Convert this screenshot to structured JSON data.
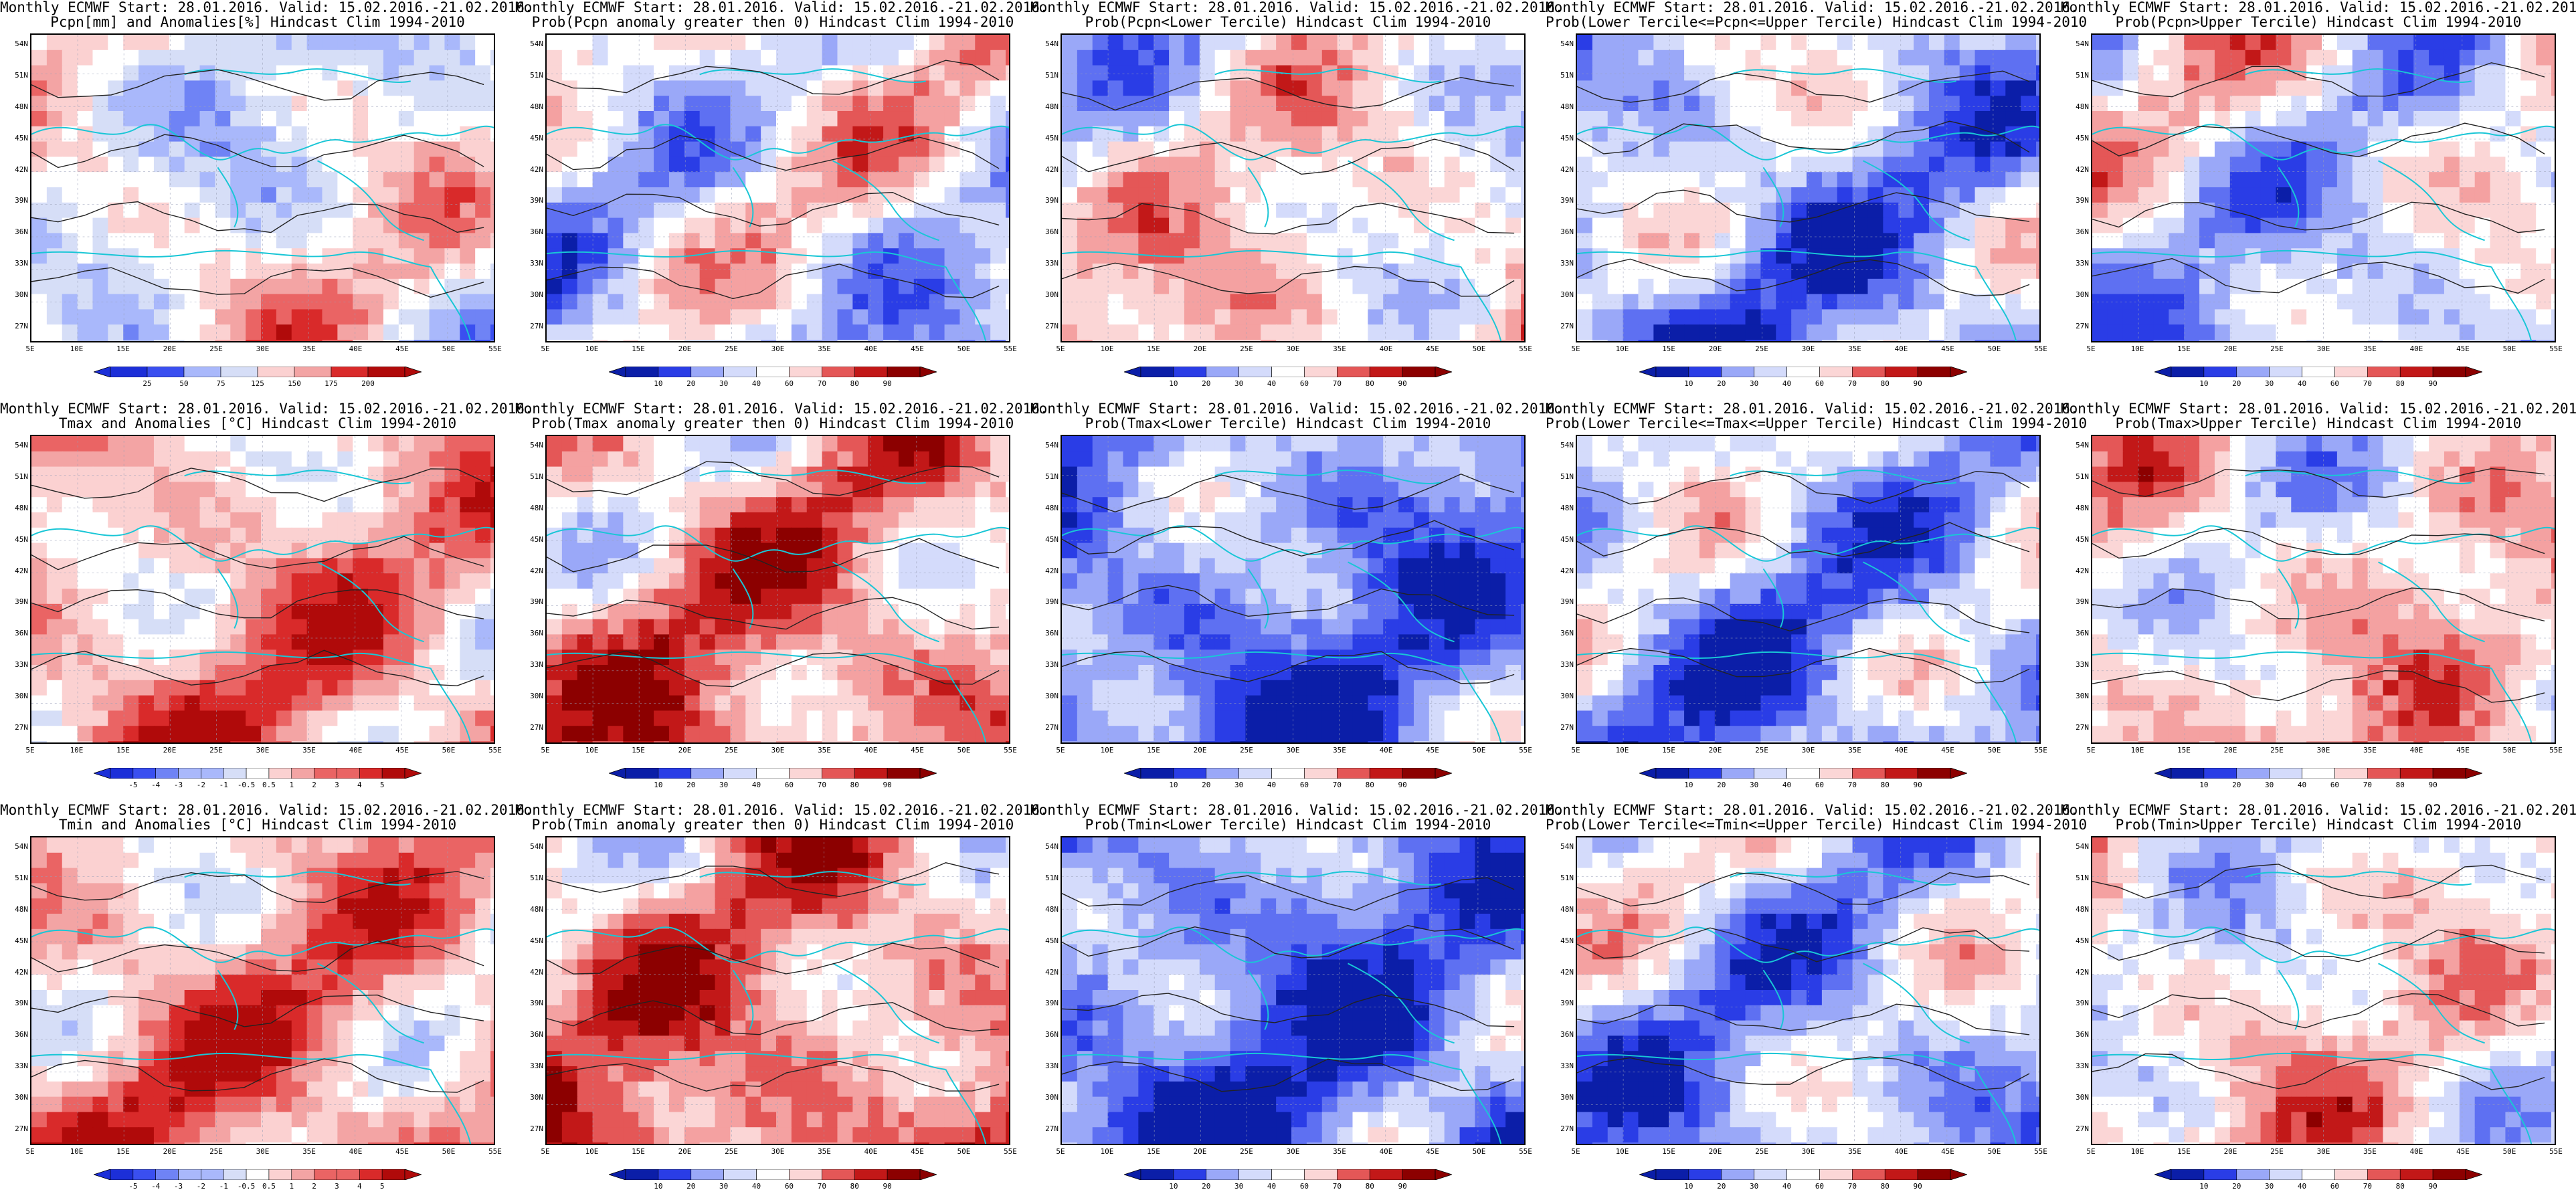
{
  "common_line1": "Monthly ECMWF Start: 28.01.2016. Valid: 15.02.2016.-21.02.2016.",
  "lat_labels": [
    "54N",
    "51N",
    "48N",
    "45N",
    "42N",
    "39N",
    "36N",
    "33N",
    "30N",
    "27N"
  ],
  "lon_labels": [
    "5E",
    "10E",
    "15E",
    "20E",
    "25E",
    "30E",
    "35E",
    "40E",
    "45E",
    "50E",
    "55E"
  ],
  "colormaps": {
    "diverging_blue_red": [
      "#1c2fd8",
      "#3a4ff0",
      "#6f83f5",
      "#a9b8fb",
      "#d6def7",
      "#ffffff",
      "#fbd1d1",
      "#f3a4a4",
      "#ea6464",
      "#d92a2a",
      "#b00a0a"
    ],
    "probability": [
      "#0b1ea8",
      "#2a3de6",
      "#5e70f2",
      "#9aa8f8",
      "#d4dbfb",
      "#ffffff",
      "#fbd6d6",
      "#f4a1a1",
      "#e45757",
      "#c21818",
      "#8c0000"
    ]
  },
  "colorbars": {
    "pcpn_anom": [
      "25",
      "50",
      "75",
      "125",
      "150",
      "175",
      "200"
    ],
    "temp_anom": [
      "-5",
      "-4",
      "-3",
      "-2",
      "-1",
      "-0.5",
      "0.5",
      "1",
      "2",
      "3",
      "4",
      "5"
    ],
    "prob": [
      "10",
      "20",
      "30",
      "40",
      "60",
      "70",
      "80",
      "90"
    ]
  },
  "panels": [
    {
      "title": "Pcpn[mm] and Anomalies[%] Hindcast Clim 1994-2010",
      "cbar": "pcpn_anom",
      "bias": 0.0,
      "seed": 11
    },
    {
      "title": "Prob(Pcpn anomaly greater then 0) Hindcast Clim 1994-2010",
      "cbar": "prob",
      "bias": -0.1,
      "seed": 12
    },
    {
      "title": "Prob(Pcpn<Lower Tercile) Hindcast Clim 1994-2010",
      "cbar": "prob",
      "bias": 0.1,
      "seed": 13
    },
    {
      "title": "Prob(Lower Tercile<=Pcpn<=Upper Tercile) Hindcast Clim 1994-2010",
      "cbar": "prob",
      "bias": -0.35,
      "seed": 14
    },
    {
      "title": "Prob(Pcpn>Upper Tercile) Hindcast Clim 1994-2010",
      "cbar": "prob",
      "bias": -0.15,
      "seed": 15
    },
    {
      "title": "Tmax and Anomalies [°C] Hindcast Clim 1994-2010",
      "cbar": "temp_anom",
      "bias": 0.35,
      "seed": 21
    },
    {
      "title": "Prob(Tmax anomaly greater then 0) Hindcast Clim 1994-2010",
      "cbar": "prob",
      "bias": 0.4,
      "seed": 22
    },
    {
      "title": "Prob(Tmax<Lower Tercile) Hindcast Clim 1994-2010",
      "cbar": "prob",
      "bias": -0.55,
      "seed": 23
    },
    {
      "title": "Prob(Lower Tercile<=Tmax<=Upper Tercile) Hindcast Clim 1994-2010",
      "cbar": "prob",
      "bias": -0.35,
      "seed": 24
    },
    {
      "title": "Prob(Tmax>Upper Tercile) Hindcast Clim 1994-2010",
      "cbar": "prob",
      "bias": 0.15,
      "seed": 25
    },
    {
      "title": "Tmin and Anomalies [°C] Hindcast Clim 1994-2010",
      "cbar": "temp_anom",
      "bias": 0.4,
      "seed": 31
    },
    {
      "title": "Prob(Tmin anomaly greater then 0) Hindcast Clim 1994-2010",
      "cbar": "prob",
      "bias": 0.45,
      "seed": 32
    },
    {
      "title": "Prob(Tmin<Lower Tercile) Hindcast Clim 1994-2010",
      "cbar": "prob",
      "bias": -0.6,
      "seed": 33
    },
    {
      "title": "Prob(Lower Tercile<=Tmin<=Upper Tercile) Hindcast Clim 1994-2010",
      "cbar": "prob",
      "bias": -0.3,
      "seed": 34
    },
    {
      "title": "Prob(Tmin>Upper Tercile) Hindcast Clim 1994-2010",
      "cbar": "prob",
      "bias": 0.1,
      "seed": 35
    }
  ]
}
